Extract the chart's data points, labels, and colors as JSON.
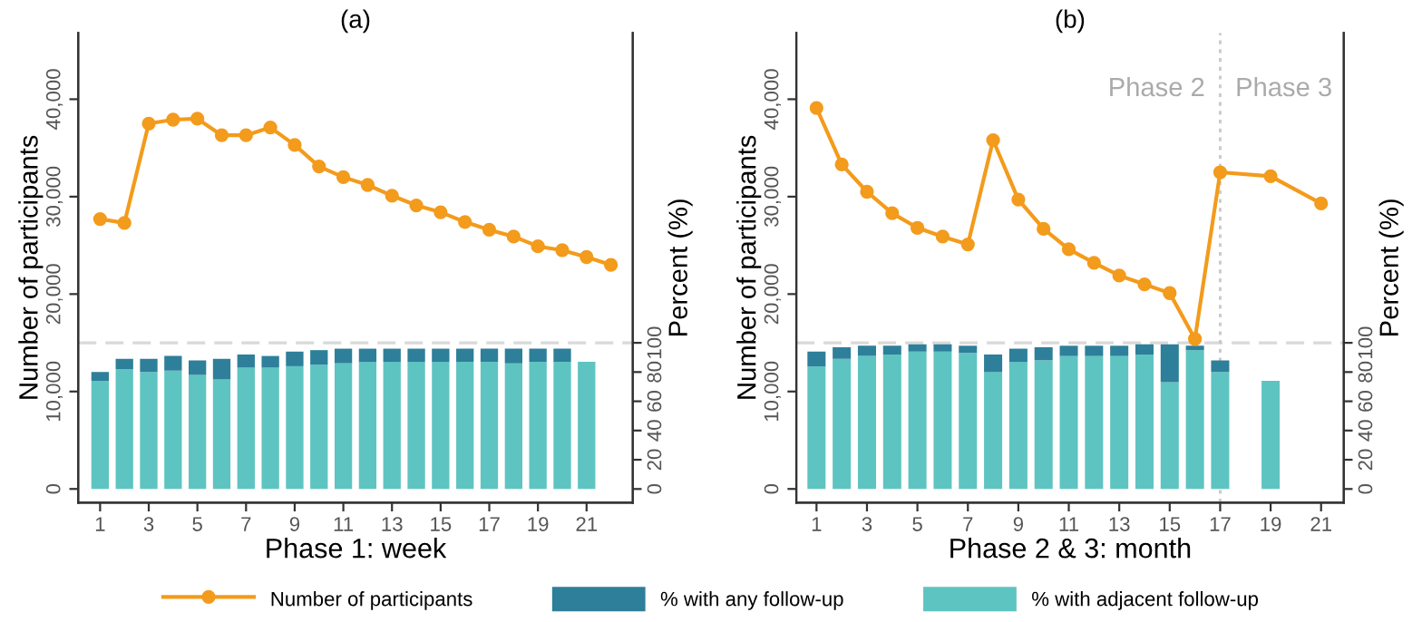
{
  "chart_data": [
    {
      "type": "bar",
      "title": "(a)",
      "xlabel": "Phase 1: week",
      "ylabel": "Number of participants",
      "y2label": "Percent (%)",
      "stacked": true,
      "legend": "bottom",
      "grid": false,
      "xlim": [
        0.1,
        22.9
      ],
      "xticks": [
        1,
        3,
        5,
        7,
        9,
        11,
        13,
        15,
        17,
        19,
        21
      ],
      "ylim": [
        -1400,
        46800
      ],
      "yticks": [
        0,
        {
          "value": 10000,
          "label": "10,000"
        },
        {
          "value": 20000,
          "label": "20,000"
        },
        {
          "value": 30000,
          "label": "30,000"
        },
        {
          "value": 40000,
          "label": "40,000"
        }
      ],
      "y2lim": [
        -9.3,
        312
      ],
      "y2ticks": [
        0,
        20,
        40,
        60,
        80,
        100
      ],
      "ref_lines": [
        {
          "axis": "y2",
          "value": 100,
          "color": "#d9d9d9",
          "line_style": "dashed"
        }
      ],
      "series": [
        {
          "name": "Number of participants",
          "type": "line",
          "color": "#f39b1c",
          "marker": "circle",
          "x": [
            1,
            2,
            3,
            4,
            5,
            6,
            7,
            8,
            9,
            10,
            11,
            12,
            13,
            14,
            15,
            16,
            17,
            18,
            19,
            20,
            21,
            22
          ],
          "values": [
            27700,
            27300,
            37500,
            37900,
            38000,
            36300,
            36300,
            37100,
            35300,
            33100,
            32000,
            31200,
            30100,
            29100,
            28400,
            27400,
            26600,
            25900,
            24900,
            24500,
            23800,
            23000
          ]
        },
        {
          "name": "% with adjacent follow-up",
          "axis": "y2",
          "color": "#5ec4c1",
          "x": [
            1,
            2,
            3,
            4,
            5,
            6,
            7,
            8,
            9,
            10,
            11,
            12,
            13,
            14,
            15,
            16,
            17,
            18,
            19,
            20,
            21
          ],
          "values": [
            74,
            82,
            80,
            81,
            78,
            75,
            83,
            83,
            84,
            85,
            86,
            87,
            87,
            87,
            87,
            87,
            87,
            86,
            87,
            87,
            87
          ]
        },
        {
          "name": "% with any follow-up",
          "axis": "y2",
          "color": "#2e7f9a",
          "x": [
            1,
            2,
            3,
            4,
            5,
            6,
            7,
            8,
            9,
            10,
            11,
            12,
            13,
            14,
            15,
            16,
            17,
            18,
            19,
            20
          ],
          "values": [
            6,
            7,
            9,
            10,
            10,
            14,
            9,
            8,
            10,
            10,
            10,
            9,
            9,
            9,
            9,
            9,
            9,
            10,
            9,
            9
          ]
        }
      ]
    },
    {
      "type": "bar",
      "title": "(b)",
      "xlabel": "Phase 2 & 3: month",
      "ylabel": "Number of participants",
      "y2label": "Percent (%)",
      "stacked": true,
      "grid": false,
      "xlim": [
        0.2,
        21.9
      ],
      "xticks": [
        1,
        3,
        5,
        7,
        9,
        11,
        13,
        15,
        17,
        19,
        21
      ],
      "ylim": [
        -1400,
        46800
      ],
      "yticks": [
        0,
        {
          "value": 10000,
          "label": "10,000"
        },
        {
          "value": 20000,
          "label": "20,000"
        },
        {
          "value": 30000,
          "label": "30,000"
        },
        {
          "value": 40000,
          "label": "40,000"
        }
      ],
      "y2lim": [
        -9.3,
        312
      ],
      "y2ticks": [
        0,
        20,
        40,
        60,
        80,
        100
      ],
      "ref_lines": [
        {
          "axis": "y2",
          "value": 100,
          "color": "#d9d9d9",
          "line_style": "dashed"
        },
        {
          "axis": "x",
          "value": 17,
          "color": "#c8c8c8",
          "line_style": "dotted"
        }
      ],
      "annotations": [
        "Phase 2",
        "Phase 3"
      ],
      "series": [
        {
          "type": "line",
          "color": "#f39b1c",
          "marker": "circle",
          "x": [
            1,
            2,
            3,
            4,
            5,
            6,
            7,
            8,
            9,
            10,
            11,
            12,
            13,
            14,
            15,
            16,
            17,
            19,
            21
          ],
          "values": [
            39100,
            33300,
            30500,
            28300,
            26800,
            25900,
            25100,
            35800,
            29700,
            26700,
            24600,
            23200,
            21900,
            21000,
            20100,
            15400,
            32500,
            32100,
            29300
          ]
        },
        {
          "axis": "y2",
          "color": "#5ec4c1",
          "x": [
            1,
            2,
            3,
            4,
            5,
            6,
            7,
            8,
            9,
            10,
            11,
            12,
            13,
            14,
            15,
            16,
            17,
            19
          ],
          "values": [
            84,
            89,
            91,
            92,
            94,
            94,
            93,
            80,
            87,
            88,
            91,
            91,
            91,
            92,
            73,
            95,
            80,
            74
          ]
        },
        {
          "axis": "y2",
          "color": "#2e7f9a",
          "x": [
            1,
            2,
            3,
            4,
            5,
            6,
            7,
            8,
            9,
            10,
            11,
            12,
            13,
            14,
            15,
            16,
            17
          ],
          "values": [
            10,
            8,
            7,
            6,
            5,
            5,
            5,
            12,
            9,
            9,
            7,
            7,
            7,
            7,
            26,
            3,
            8
          ]
        }
      ]
    }
  ]
}
